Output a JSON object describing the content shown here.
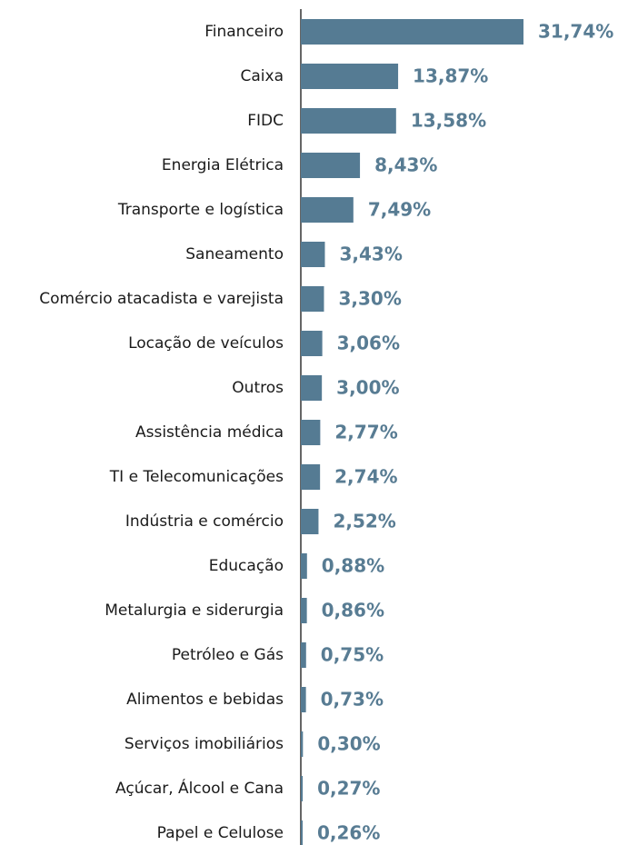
{
  "chart_data": {
    "type": "barh",
    "color": "#557b93",
    "label_color": "#587c93",
    "categories": [
      "Financeiro",
      "Caixa",
      "FIDC",
      "Energia Elétrica",
      "Transporte e logística",
      "Saneamento",
      "Comércio atacadista e varejista",
      "Locação de veículos",
      "Outros",
      "Assistência médica",
      "TI e Telecomunicações",
      "Indústria e comércio",
      "Educação",
      "Metalurgia e siderurgia",
      "Petróleo e Gás",
      "Alimentos e bebidas",
      "Serviços imobiliários",
      "Açúcar, Álcool e Cana",
      "Papel e Celulose"
    ],
    "values": [
      31.74,
      13.87,
      13.58,
      8.43,
      7.49,
      3.43,
      3.3,
      3.06,
      3.0,
      2.77,
      2.74,
      2.52,
      0.88,
      0.86,
      0.75,
      0.73,
      0.3,
      0.27,
      0.26
    ],
    "value_labels": [
      "31,74%",
      "13,87%",
      "13,58%",
      "8,43%",
      "7,49%",
      "3,43%",
      "3,30%",
      "3,06%",
      "3,00%",
      "2,77%",
      "2,74%",
      "2,52%",
      "0,88%",
      "0,86%",
      "0,75%",
      "0,73%",
      "0,30%",
      "0,27%",
      "0,26%"
    ]
  }
}
